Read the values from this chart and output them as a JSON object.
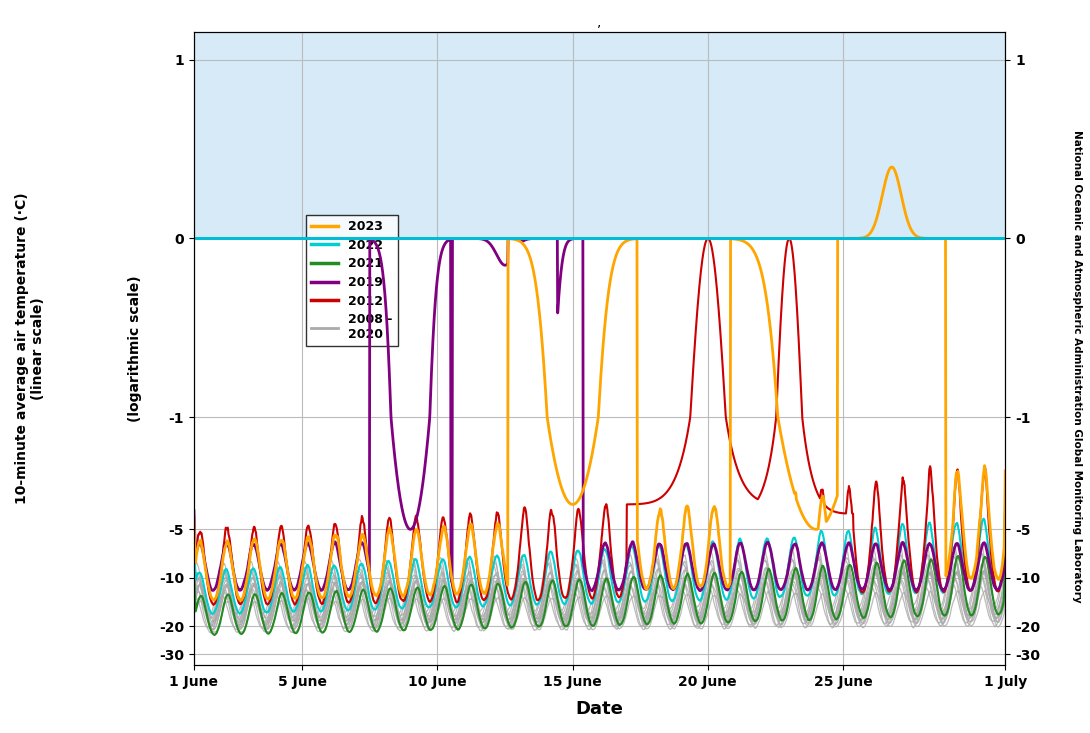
{
  "title": ",",
  "xlabel": "Date",
  "ylabel_left_top": "10-minute average air temperature (·C)\n(linear scale)",
  "ylabel_left_bottom": "(logarithmic scale)",
  "ylabel_right": "National Oceanic and Atmospheric Administration Global Monitoring Laboratory",
  "background_above_zero": "#d6eaf8",
  "background_below_zero": "#ffffff",
  "zero_line_color": "#00bcd4",
  "grid_color": "#bbbbbb",
  "colors": {
    "2023": "#FFA500",
    "2022": "#00CED1",
    "2021": "#228B22",
    "2019": "#800080",
    "2012": "#CC0000",
    "bg": "#AAAAAA"
  },
  "xtick_positions": [
    0,
    4,
    9,
    14,
    19,
    24,
    30
  ],
  "xtick_labels": [
    "1 June",
    "5 June",
    "10 June",
    "15 June",
    "20 June",
    "25 June",
    "1 July"
  ],
  "ytick_positions": [
    1,
    0,
    -1,
    -5,
    -10,
    -20,
    -30
  ],
  "ytick_labels": [
    "1",
    "0",
    "-1",
    "-5",
    "-10",
    "-20",
    "-30"
  ],
  "xlim": [
    0,
    30
  ],
  "ylim": [
    -35,
    1.5
  ],
  "linthresh": 1.0,
  "linscale": 1.0,
  "figsize": [
    10.9,
    7.33
  ],
  "dpi": 100
}
